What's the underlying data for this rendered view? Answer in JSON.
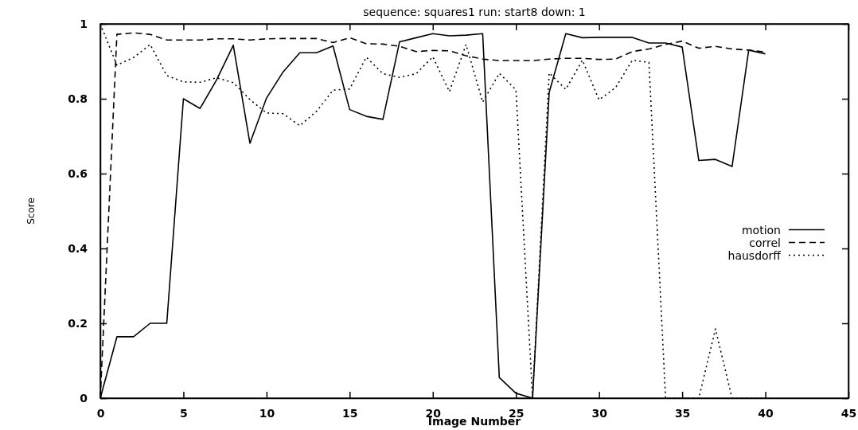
{
  "chart_data": {
    "type": "line",
    "title": "sequence: squares1 run: start8 down: 1",
    "xlabel": "Image Number",
    "ylabel": "Score",
    "x": [
      0,
      1,
      2,
      3,
      4,
      5,
      6,
      7,
      8,
      9,
      10,
      11,
      12,
      13,
      14,
      15,
      16,
      17,
      18,
      19,
      20,
      21,
      22,
      23,
      24,
      25,
      26,
      27,
      28,
      29,
      30,
      31,
      32,
      33,
      34,
      35,
      36,
      37,
      38,
      39,
      40
    ],
    "series": [
      {
        "name": "motion",
        "color": "#000000",
        "line_style": "solid",
        "values": [
          0,
          0.164,
          0.164,
          0.2,
          0.2,
          0.8,
          0.774,
          0.851,
          0.943,
          0.681,
          0.802,
          0.872,
          0.923,
          0.923,
          0.941,
          0.771,
          0.753,
          0.745,
          0.952,
          0.963,
          0.974,
          0.968,
          0.97,
          0.974,
          0.055,
          0.013,
          0,
          0.817,
          0.974,
          0.963,
          0.964,
          0.964,
          0.964,
          0.949,
          0.949,
          0.938,
          0.635,
          0.638,
          0.619,
          0.93,
          0.92
        ]
      },
      {
        "name": "correl",
        "color": "#000000",
        "line_style": "dashed",
        "values": [
          0,
          0.972,
          0.976,
          0.972,
          0.957,
          0.957,
          0.957,
          0.96,
          0.96,
          0.957,
          0.96,
          0.961,
          0.961,
          0.961,
          0.95,
          0.963,
          0.947,
          0.946,
          0.94,
          0.926,
          0.929,
          0.928,
          0.915,
          0.906,
          0.902,
          0.902,
          0.902,
          0.906,
          0.908,
          0.908,
          0.905,
          0.906,
          0.926,
          0.933,
          0.945,
          0.954,
          0.935,
          0.94,
          0.933,
          0.93,
          0.925
        ]
      },
      {
        "name": "hausdorff",
        "color": "#000000",
        "line_style": "dotted",
        "values": [
          1,
          0.89,
          0.91,
          0.945,
          0.862,
          0.845,
          0.844,
          0.856,
          0.843,
          0.798,
          0.762,
          0.76,
          0.728,
          0.766,
          0.823,
          0.826,
          0.911,
          0.867,
          0.857,
          0.867,
          0.912,
          0.819,
          0.945,
          0.791,
          0.868,
          0.824,
          0,
          0.869,
          0.825,
          0.903,
          0.797,
          0.83,
          0.903,
          0.897,
          0,
          0,
          0,
          0.185,
          0,
          0,
          0
        ]
      }
    ],
    "xlim": [
      0,
      45
    ],
    "xticks": [
      0,
      5,
      10,
      15,
      20,
      25,
      30,
      35,
      40,
      45
    ],
    "ylim": [
      0,
      1
    ],
    "yticks": [
      0,
      0.2,
      0.4,
      0.6,
      0.8,
      1
    ],
    "grid": false,
    "legend": "right",
    "marker": "none"
  }
}
